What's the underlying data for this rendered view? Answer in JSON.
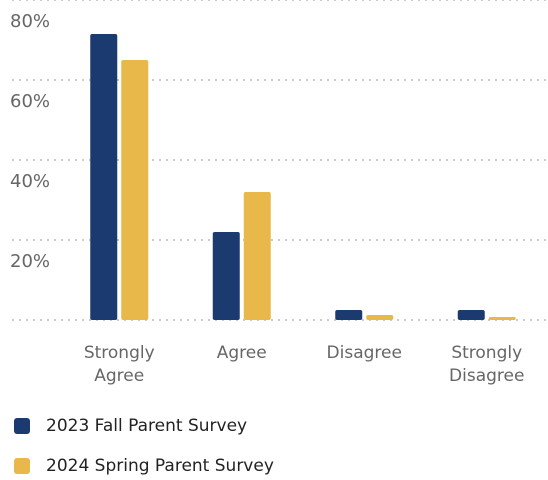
{
  "chart_data": {
    "type": "bar",
    "categories": [
      "Strongly Agree",
      "Agree",
      "Disagree",
      "Strongly Disagree"
    ],
    "series": [
      {
        "name": "2023 Fall Parent Survey",
        "color": "#1b3a6f",
        "values": [
          71.5,
          22,
          2.5,
          2.5
        ]
      },
      {
        "name": "2024 Spring Parent Survey",
        "color": "#e8b84a",
        "values": [
          65,
          32,
          1.25,
          0.75
        ]
      }
    ],
    "ylim": [
      0,
      80
    ],
    "yticks": [
      {
        "value": 20,
        "label": "20%"
      },
      {
        "value": 40,
        "label": "40%"
      },
      {
        "value": 60,
        "label": "60%"
      },
      {
        "value": 80,
        "label": "80%"
      }
    ],
    "grid": true,
    "legend": "bottom"
  }
}
